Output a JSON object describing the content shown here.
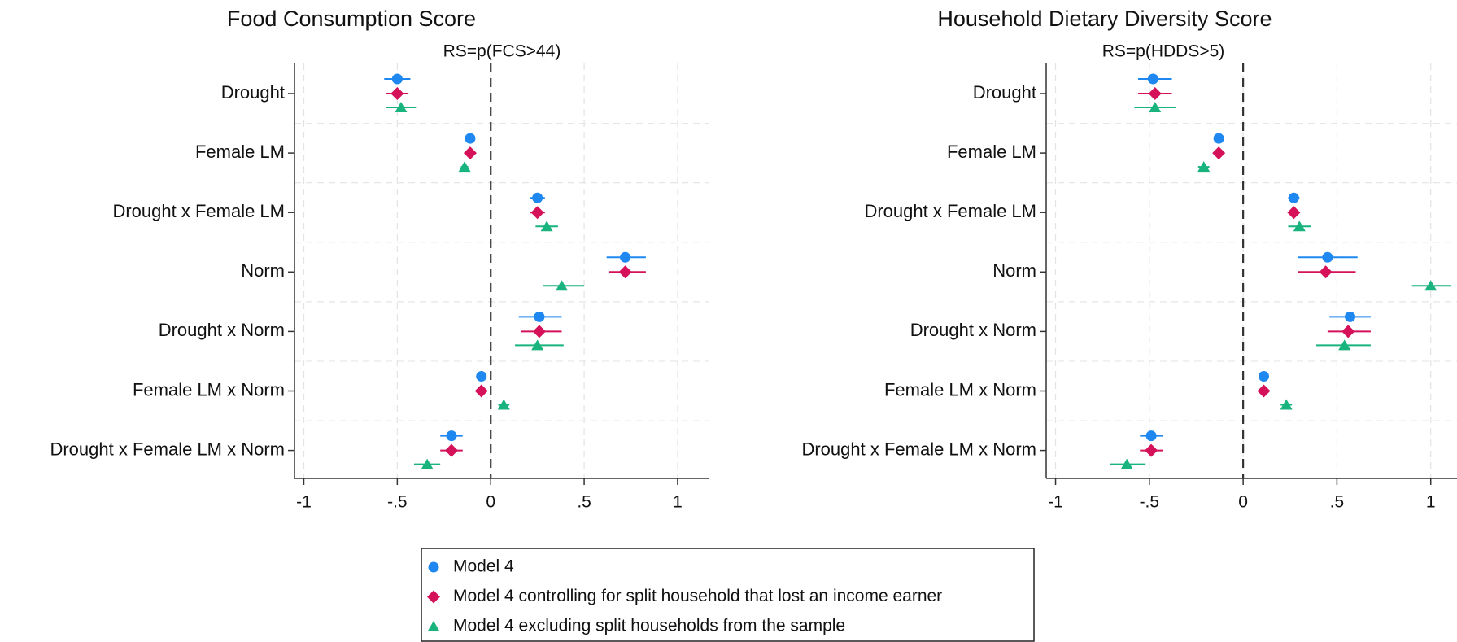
{
  "chart_data": [
    {
      "type": "coefplot",
      "title": "Food Consumption Score",
      "subtitle": "RS=p(FCS>44)",
      "categories": [
        "Drought",
        "Female LM",
        "Drought x Female LM",
        "Norm",
        "Drought x Norm",
        "Female LM x Norm",
        "Drought x Female LM x Norm"
      ],
      "xlim": [
        -1.05,
        1.17
      ],
      "xticks": [
        -1,
        {
          "value": -0.5,
          "label": "-.5"
        },
        0,
        {
          "value": 0.5,
          "label": ".5"
        },
        1
      ],
      "refline": 0,
      "grid": true,
      "series": [
        {
          "name": "Model 4",
          "color": "#1e88f0",
          "marker": "circle",
          "values": [
            -0.5,
            -0.11,
            0.25,
            0.72,
            0.26,
            -0.05,
            -0.21
          ],
          "lower": [
            -0.57,
            -0.12,
            0.21,
            0.62,
            0.15,
            -0.07,
            -0.27
          ],
          "upper": [
            -0.43,
            -0.1,
            0.29,
            0.83,
            0.38,
            -0.03,
            -0.15
          ]
        },
        {
          "name": "Model 4 controlling for split household that lost an income earner",
          "color": "#d41159",
          "marker": "diamond",
          "values": [
            -0.5,
            -0.11,
            0.25,
            0.72,
            0.26,
            -0.05,
            -0.21
          ],
          "lower": [
            -0.56,
            -0.12,
            0.21,
            0.63,
            0.16,
            -0.07,
            -0.27
          ],
          "upper": [
            -0.44,
            -0.1,
            0.29,
            0.83,
            0.38,
            -0.03,
            -0.15
          ]
        },
        {
          "name": "Model 4 excluding split households from the sample",
          "color": "#19b37e",
          "marker": "triangle",
          "values": [
            -0.48,
            -0.14,
            0.3,
            0.38,
            0.25,
            0.07,
            -0.34
          ],
          "lower": [
            -0.56,
            -0.16,
            0.24,
            0.28,
            0.13,
            0.04,
            -0.41
          ],
          "upper": [
            -0.4,
            -0.12,
            0.36,
            0.5,
            0.39,
            0.1,
            -0.27
          ]
        }
      ]
    },
    {
      "type": "coefplot",
      "title": "Household Dietary Diversity Score",
      "subtitle": "RS=p(HDDS>5)",
      "categories": [
        "Drought",
        "Female LM",
        "Drought x Female LM",
        "Norm",
        "Drought x Norm",
        "Female LM x Norm",
        "Drought x Female LM x Norm"
      ],
      "xlim": [
        -1.05,
        1.14
      ],
      "xticks": [
        -1,
        {
          "value": -0.5,
          "label": "-.5"
        },
        0,
        {
          "value": 0.5,
          "label": ".5"
        },
        1
      ],
      "refline": 0,
      "grid": true,
      "series": [
        {
          "color": "#1e88f0",
          "marker": "circle",
          "values": [
            -0.48,
            -0.13,
            0.27,
            0.45,
            0.57,
            0.11,
            -0.49
          ],
          "lower": [
            -0.56,
            -0.14,
            0.24,
            0.29,
            0.46,
            0.1,
            -0.55
          ],
          "upper": [
            -0.38,
            -0.12,
            0.3,
            0.61,
            0.68,
            0.12,
            -0.43
          ]
        },
        {
          "color": "#d41159",
          "marker": "diamond",
          "values": [
            -0.47,
            -0.13,
            0.27,
            0.44,
            0.56,
            0.11,
            -0.49
          ],
          "lower": [
            -0.56,
            -0.14,
            0.24,
            0.29,
            0.45,
            0.1,
            -0.55
          ],
          "upper": [
            -0.38,
            -0.12,
            0.3,
            0.6,
            0.68,
            0.12,
            -0.43
          ]
        },
        {
          "color": "#19b37e",
          "marker": "triangle",
          "values": [
            -0.47,
            -0.21,
            0.3,
            1.0,
            0.54,
            0.23,
            -0.62
          ],
          "lower": [
            -0.58,
            -0.24,
            0.24,
            0.9,
            0.39,
            0.2,
            -0.71
          ],
          "upper": [
            -0.36,
            -0.18,
            0.36,
            1.11,
            0.68,
            0.26,
            -0.52
          ]
        }
      ]
    }
  ]
}
